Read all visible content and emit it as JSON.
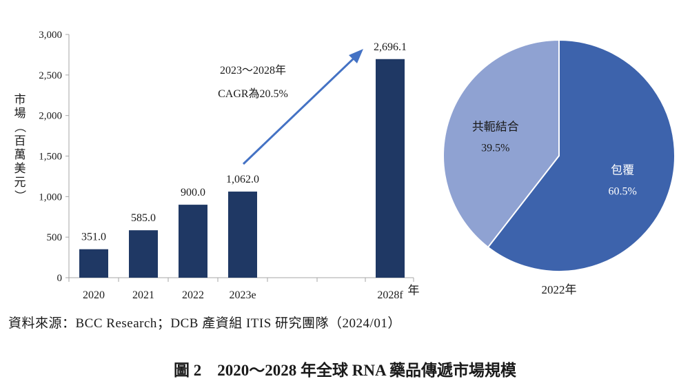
{
  "chart_data": [
    {
      "type": "bar",
      "categories": [
        "2020",
        "2021",
        "2022",
        "2023e",
        "2028f"
      ],
      "values": [
        351.0,
        585.0,
        900.0,
        1062.0,
        2696.1
      ],
      "data_labels": [
        "351.0",
        "585.0",
        "900.0",
        "1,062.0",
        "2,696.1"
      ],
      "ylabel": "市場（百萬美元）",
      "xlabel_unit": "年",
      "ylim": [
        0,
        3000
      ],
      "yticks": [
        "0",
        "500",
        "1,000",
        "1,500",
        "2,000",
        "2,500",
        "3,000"
      ],
      "bar_color": "#1f3864",
      "annotation": {
        "line1": "2023～2028年",
        "line2": "CAGR為20.5%",
        "arrow_color": "#4472c4"
      }
    },
    {
      "type": "pie",
      "labels": [
        "包覆",
        "共軛結合"
      ],
      "values": [
        60.5,
        39.5
      ],
      "value_labels": [
        "60.5%",
        "39.5%"
      ],
      "colors": [
        "#3d63ac",
        "#8fa2d2"
      ],
      "label_colors": [
        "#ffffff",
        "#1a1a1a"
      ],
      "xlabel": "2022年"
    }
  ],
  "source": "資料來源：BCC Research；DCB 產資組 ITIS 研究團隊（2024/01）",
  "caption": "圖 2　2020～2028 年全球 RNA 藥品傳遞市場規模"
}
